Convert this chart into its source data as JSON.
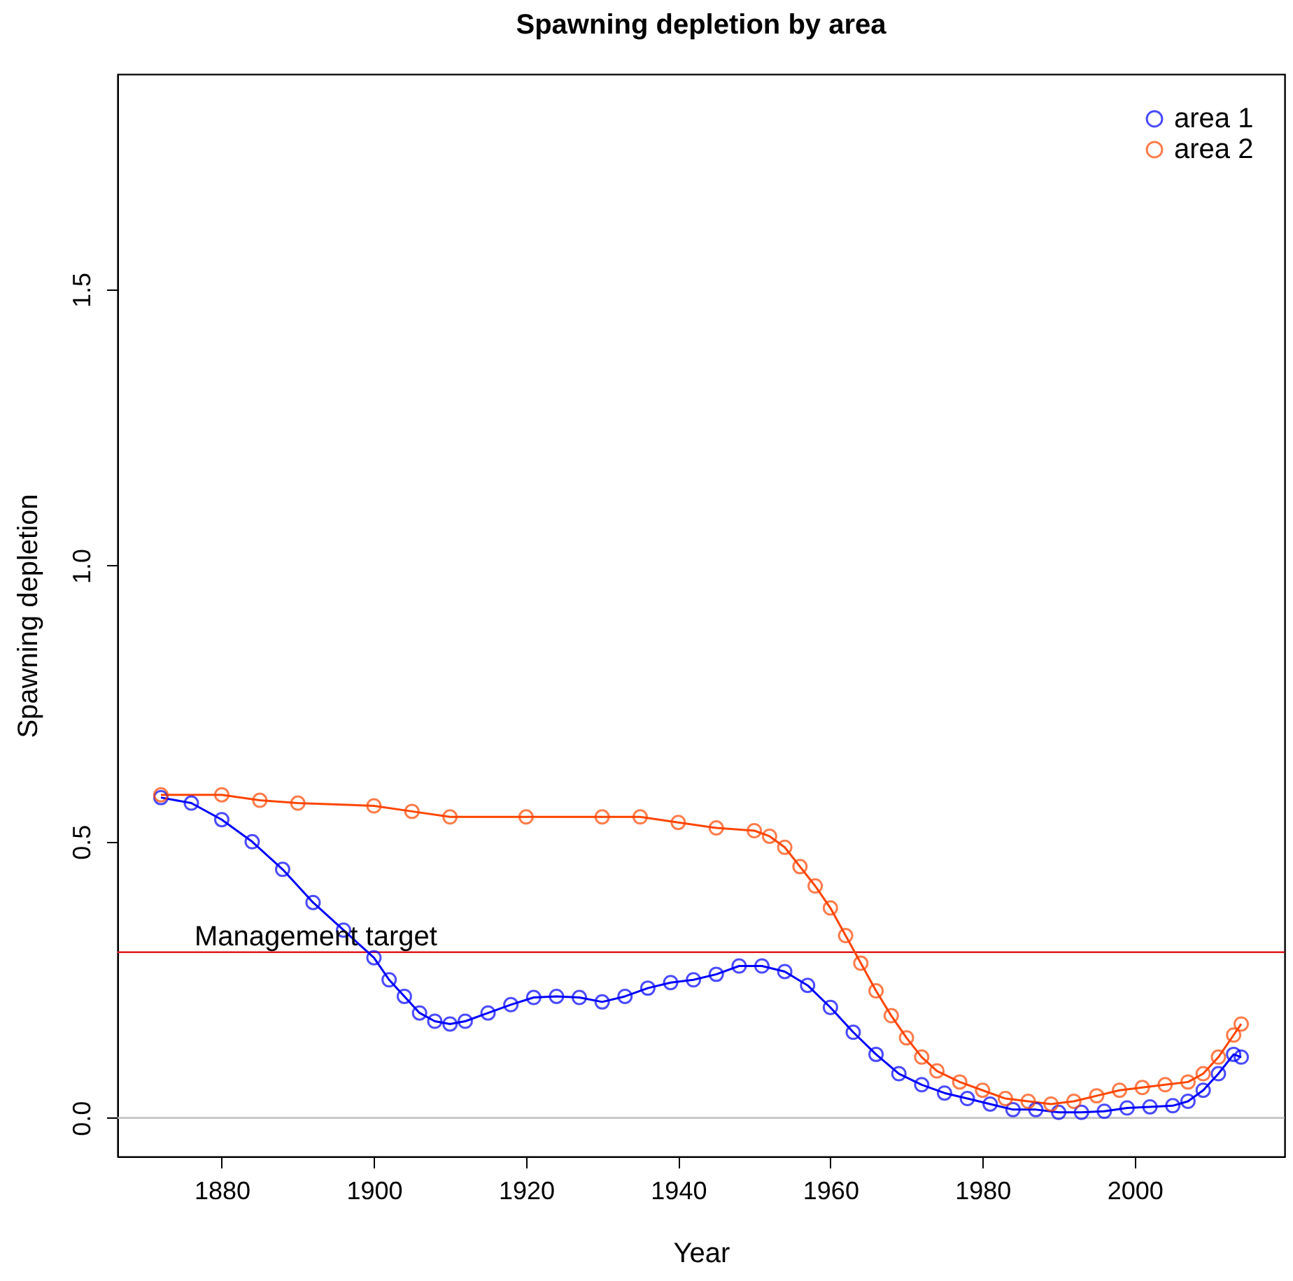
{
  "chart_data": {
    "type": "line",
    "title": "Spawning depletion by area",
    "xlabel": "Year",
    "ylabel": "Spawning depletion",
    "xlim": [
      1866.3,
      2019.7
    ],
    "xticks": [
      1880,
      1900,
      1920,
      1940,
      1960,
      1980,
      2000
    ],
    "ylim": [
      -0.07,
      1.89
    ],
    "yticks": [
      {
        "value": 0,
        "label": "0.0"
      },
      0.5,
      {
        "value": 1,
        "label": "1.0"
      },
      1.5
    ],
    "grid": false,
    "legend": "top right",
    "marker": "circle",
    "line_style": "solid",
    "series": [
      {
        "name": "area 1",
        "color": "#0000ff",
        "x": [
          1872,
          1876,
          1880,
          1884,
          1888,
          1892,
          1896,
          1900,
          1902,
          1904,
          1906,
          1908,
          1910,
          1912,
          1915,
          1918,
          1921,
          1924,
          1927,
          1930,
          1933,
          1936,
          1939,
          1942,
          1945,
          1948,
          1951,
          1954,
          1957,
          1960,
          1963,
          1966,
          1969,
          1972,
          1975,
          1978,
          1981,
          1984,
          1987,
          1990,
          1993,
          1996,
          1999,
          2002,
          2005,
          2007,
          2009,
          2011,
          2013,
          2014
        ],
        "values": [
          0.58,
          0.57,
          0.54,
          0.5,
          0.45,
          0.39,
          0.34,
          0.29,
          0.25,
          0.22,
          0.19,
          0.175,
          0.17,
          0.175,
          0.19,
          0.205,
          0.218,
          0.22,
          0.218,
          0.21,
          0.22,
          0.235,
          0.245,
          0.25,
          0.26,
          0.275,
          0.275,
          0.265,
          0.24,
          0.2,
          0.155,
          0.115,
          0.08,
          0.06,
          0.045,
          0.035,
          0.025,
          0.015,
          0.015,
          0.01,
          0.01,
          0.012,
          0.018,
          0.02,
          0.022,
          0.03,
          0.05,
          0.08,
          0.115,
          0.11
        ]
      },
      {
        "name": "area 2",
        "color": "#ff4500",
        "x": [
          1872,
          1880,
          1885,
          1890,
          1900,
          1905,
          1910,
          1920,
          1930,
          1935,
          1940,
          1945,
          1950,
          1952,
          1954,
          1956,
          1958,
          1960,
          1962,
          1964,
          1966,
          1968,
          1970,
          1972,
          1974,
          1977,
          1980,
          1983,
          1986,
          1989,
          1992,
          1995,
          1998,
          2001,
          2004,
          2007,
          2009,
          2011,
          2013,
          2014
        ],
        "values": [
          0.585,
          0.585,
          0.575,
          0.57,
          0.565,
          0.555,
          0.545,
          0.545,
          0.545,
          0.545,
          0.535,
          0.525,
          0.52,
          0.51,
          0.49,
          0.455,
          0.42,
          0.38,
          0.33,
          0.28,
          0.23,
          0.185,
          0.145,
          0.11,
          0.085,
          0.065,
          0.05,
          0.035,
          0.03,
          0.025,
          0.03,
          0.04,
          0.05,
          0.055,
          0.06,
          0.065,
          0.08,
          0.11,
          0.15,
          0.17
        ]
      }
    ],
    "ref_lines": [
      {
        "axis": "y",
        "value": 0.3,
        "label": "Management target",
        "color": "#e0191f"
      },
      {
        "axis": "y",
        "value": 0,
        "label": null,
        "color": "#bebebe"
      }
    ]
  }
}
